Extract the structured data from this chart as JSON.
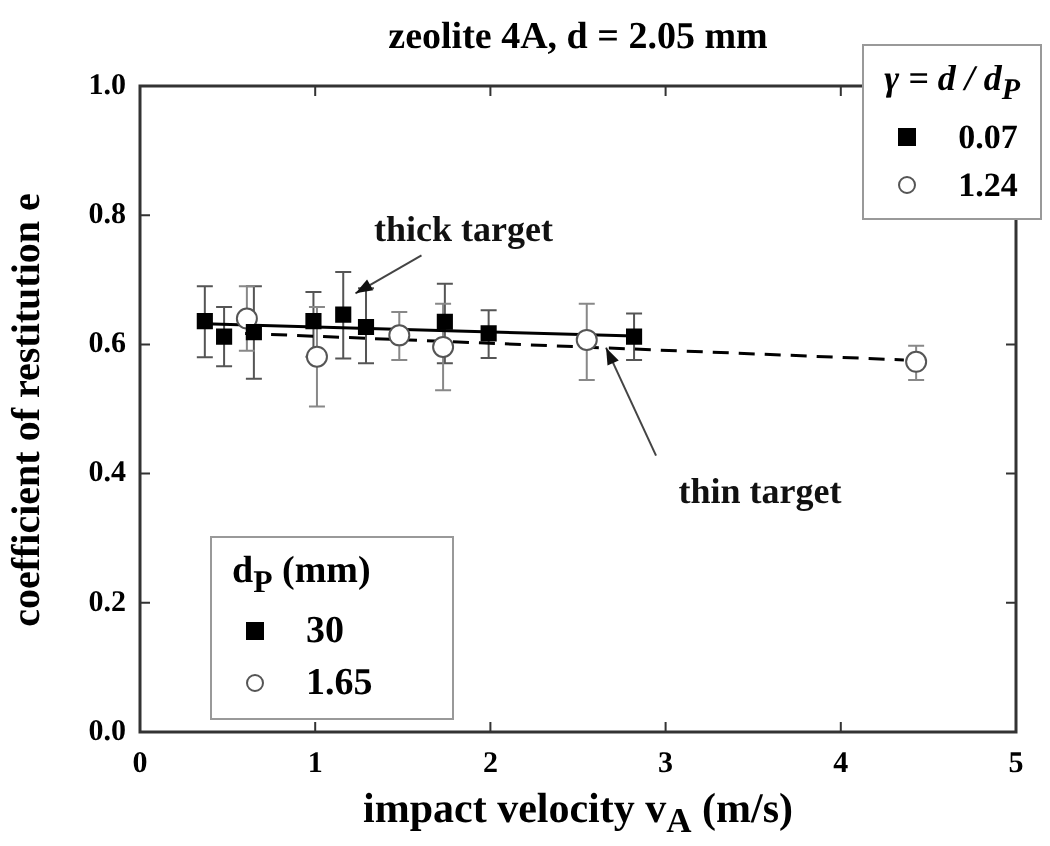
{
  "chart_data": {
    "type": "scatter",
    "title": "zeolite 4A, d = 2.05 mm",
    "xlabel": "impact velocity v$_{A}$ (m/s)",
    "ylabel": "coefficient of restitution e",
    "legend_title": "γ = d / d$_{P}$",
    "series": [
      {
        "name": "0.07",
        "marker": "square",
        "color": "#000000",
        "x": [
          0.37,
          0.48,
          0.65,
          0.99,
          1.16,
          1.29,
          1.74,
          1.99,
          2.82
        ],
        "values": [
          0.636,
          0.612,
          0.619,
          0.636,
          0.646,
          0.627,
          0.635,
          0.617,
          0.612
        ],
        "errors": [
          [
            0.58,
            0.69
          ],
          [
            0.566,
            0.658
          ],
          [
            0.547,
            0.69
          ],
          [
            0.581,
            0.681
          ],
          [
            0.578,
            0.712
          ],
          [
            0.571,
            0.687
          ],
          [
            0.571,
            0.694
          ],
          [
            0.579,
            0.653
          ],
          [
            0.576,
            0.648
          ]
        ]
      },
      {
        "name": "1.24",
        "marker": "circle",
        "color": "#555555",
        "x": [
          0.61,
          1.01,
          1.48,
          1.73,
          2.55,
          4.43
        ],
        "values": [
          0.64,
          0.581,
          0.614,
          0.596,
          0.607,
          0.573
        ],
        "errors": [
          [
            0.59,
            0.69
          ],
          [
            0.504,
            0.658
          ],
          [
            0.576,
            0.65
          ],
          [
            0.529,
            0.663
          ],
          [
            0.545,
            0.663
          ],
          [
            0.545,
            0.598
          ]
        ]
      },
      {
        "type": "line",
        "marker": "none",
        "line_style": "solid",
        "color": "#000000",
        "x": [
          0.37,
          2.82
        ],
        "values": [
          0.632,
          0.613
        ]
      },
      {
        "type": "line",
        "marker": "none",
        "line_style": "dashed",
        "color": "#000000",
        "x": [
          0.6,
          4.36
        ],
        "values": [
          0.617,
          0.576
        ]
      }
    ],
    "annotations": [
      {
        "text": "thick target",
        "x": 1.23,
        "y": 0.679
      },
      {
        "text": "thin target",
        "x": 2.66,
        "y": 0.595
      },
      "d$_{P}$ (mm)",
      "30",
      "1.65"
    ],
    "xlim": [
      0,
      5
    ],
    "xticks": [
      0,
      1,
      2,
      3,
      4,
      5
    ],
    "ylim": [
      0,
      1
    ],
    "yticks": [
      {
        "value": 0,
        "label": "0.0"
      },
      {
        "value": 0.2,
        "label": "0.2"
      },
      {
        "value": 0.4,
        "label": "0.4"
      },
      {
        "value": 0.6,
        "label": "0.6"
      },
      {
        "value": 0.8,
        "label": "0.8"
      },
      {
        "value": 1,
        "label": "1.0"
      }
    ],
    "grid": false,
    "legend": "top right"
  }
}
